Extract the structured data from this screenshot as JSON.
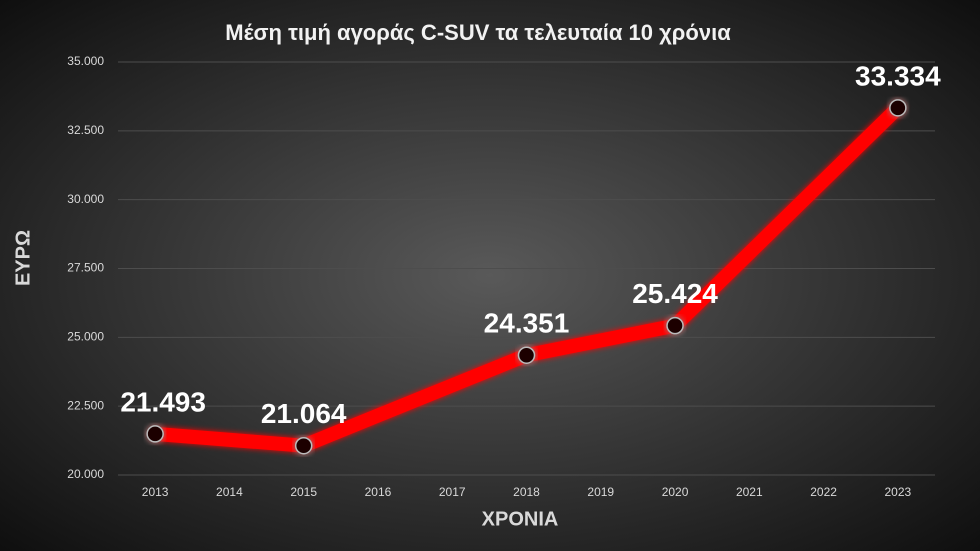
{
  "chart_data": {
    "type": "line",
    "title": "Μέση τιμή αγοράς C-SUV τα τελευταία 10 χρόνια",
    "x_label": "ΧΡΟΝΙΑ",
    "y_label": "ΕΥΡΩ",
    "x": [
      2013,
      2015,
      2018,
      2020,
      2023
    ],
    "values": [
      21493,
      21064,
      24351,
      25424,
      33334
    ],
    "value_labels": [
      "21.493",
      "21.064",
      "24.351",
      "25.424",
      "33.334"
    ],
    "color": "#ff0000",
    "xlim": [
      2012.5,
      2023.5
    ],
    "xticks": [
      2013,
      2014,
      2015,
      2016,
      2017,
      2018,
      2019,
      2020,
      2021,
      2022,
      2023
    ],
    "ylim": [
      20000,
      35000
    ],
    "yticks": [
      {
        "value": 20000,
        "label": "20.000"
      },
      {
        "value": 22500,
        "label": "22.500"
      },
      {
        "value": 25000,
        "label": "25.000"
      },
      {
        "value": 27500,
        "label": "27.500"
      },
      {
        "value": 30000,
        "label": "30.000"
      },
      {
        "value": 32500,
        "label": "32.500"
      },
      {
        "value": 35000,
        "label": "35.000"
      }
    ],
    "grid": true
  }
}
